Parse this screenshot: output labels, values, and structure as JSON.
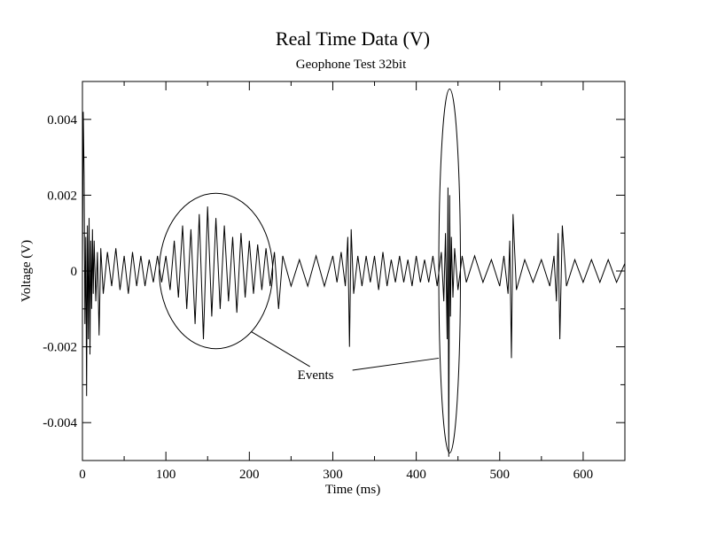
{
  "chart_data": {
    "type": "line",
    "title": "Real Time Data (V)",
    "subtitle": "Geophone Test 32bit",
    "xlabel": "Time (ms)",
    "ylabel": "Voltage (V)",
    "xlim": [
      0,
      650
    ],
    "ylim": [
      -0.005,
      0.005
    ],
    "x_ticks": [
      0,
      100,
      200,
      300,
      400,
      500,
      600
    ],
    "x_tick_labels": [
      "0",
      "100",
      "200",
      "300",
      "400",
      "500",
      "600"
    ],
    "y_ticks": [
      -0.004,
      -0.002,
      0,
      0.002,
      0.004
    ],
    "y_tick_labels": [
      "-0.004",
      "-0.002",
      "0",
      "0.002",
      "0.004"
    ],
    "grid": false,
    "series": [
      {
        "color": "#000000",
        "x": [
          0,
          1,
          2,
          3,
          4,
          5,
          6,
          7,
          8,
          9,
          10,
          11,
          12,
          13,
          14,
          16,
          18,
          20,
          22,
          25,
          30,
          35,
          40,
          45,
          50,
          55,
          60,
          65,
          70,
          75,
          80,
          85,
          90,
          95,
          100,
          105,
          110,
          115,
          120,
          125,
          130,
          135,
          140,
          145,
          150,
          155,
          160,
          165,
          170,
          175,
          180,
          185,
          190,
          195,
          200,
          205,
          210,
          215,
          220,
          225,
          230,
          235,
          240,
          250,
          260,
          270,
          280,
          290,
          300,
          305,
          310,
          315,
          318,
          320,
          322,
          325,
          330,
          335,
          340,
          345,
          350,
          355,
          360,
          365,
          370,
          375,
          380,
          385,
          390,
          395,
          400,
          405,
          410,
          415,
          420,
          425,
          430,
          433,
          435,
          437,
          438,
          439,
          440,
          441,
          442,
          444,
          446,
          450,
          455,
          460,
          470,
          480,
          490,
          500,
          505,
          510,
          512,
          514,
          516,
          520,
          530,
          540,
          550,
          560,
          565,
          568,
          570,
          572,
          575,
          580,
          590,
          600,
          610,
          620,
          630,
          640,
          650
        ],
        "y": [
          0,
          0.0042,
          0.0025,
          -0.0014,
          0.0009,
          -0.0033,
          0.0012,
          -0.0018,
          0.0014,
          -0.0022,
          0.0008,
          -0.001,
          0.0011,
          -0.0006,
          0.0008,
          -0.0008,
          0.0005,
          -0.0017,
          0.0006,
          -0.0006,
          0.0005,
          -0.0004,
          0.0006,
          -0.0005,
          0.0004,
          -0.0006,
          0.0005,
          -0.0004,
          0.0004,
          -0.0004,
          0.0003,
          -0.0003,
          0.0004,
          -0.0003,
          0.0004,
          -0.0005,
          0.0008,
          -0.0007,
          0.0012,
          -0.001,
          0.0011,
          -0.0014,
          0.0015,
          -0.0018,
          0.0017,
          -0.0012,
          0.0014,
          -0.001,
          0.0012,
          -0.0008,
          0.0009,
          -0.0011,
          0.001,
          -0.0007,
          0.0008,
          -0.0006,
          0.0007,
          -0.0005,
          0.0006,
          -0.0004,
          0.0005,
          -0.001,
          0.0004,
          -0.0004,
          0.0003,
          -0.0004,
          0.0004,
          -0.0004,
          0.0004,
          -0.0003,
          0.0005,
          -0.0004,
          0.0009,
          -0.002,
          0.0011,
          -0.0006,
          0.0004,
          -0.0004,
          0.0004,
          -0.0003,
          0.0004,
          -0.0005,
          0.0005,
          -0.0004,
          0.0003,
          -0.0003,
          0.0004,
          -0.0003,
          0.0003,
          -0.0004,
          0.0004,
          -0.0003,
          0.0003,
          -0.0003,
          0.0004,
          -0.0004,
          0.0005,
          -0.0008,
          0.001,
          -0.0018,
          0.0022,
          -0.0049,
          0.002,
          -0.0012,
          0.0009,
          -0.0007,
          0.0006,
          -0.0005,
          0.0004,
          -0.0003,
          0.0004,
          -0.0003,
          0.0003,
          -0.0004,
          0.0004,
          -0.0006,
          0.0008,
          -0.0023,
          0.0015,
          -0.0005,
          0.0003,
          -0.0003,
          0.0003,
          -0.0004,
          0.0004,
          -0.0008,
          0.001,
          -0.0018,
          0.0012,
          -0.0004,
          0.0003,
          -0.0003,
          0.0003,
          -0.0003,
          0.0003,
          -0.0003,
          0.0002
        ]
      }
    ],
    "annotations": [
      {
        "text": "Events",
        "kind": "label",
        "x": 262,
        "y": -0.00285
      },
      {
        "kind": "ellipse",
        "cx": 160,
        "cy": 0,
        "rx": 68,
        "ry": 0.00205
      },
      {
        "kind": "ellipse",
        "cx": 440,
        "cy": 0,
        "rx": 13,
        "ry": 0.0048
      }
    ]
  }
}
